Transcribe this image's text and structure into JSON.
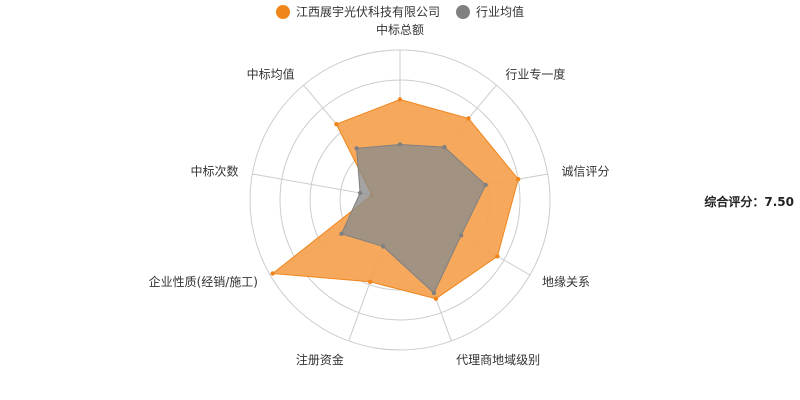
{
  "chart_data": {
    "type": "radar",
    "indicators": [
      "中标总额",
      "行业专一度",
      "诚信评分",
      "地缘关系",
      "代理商地域级别",
      "注册资金",
      "企业性质(经销/施工)",
      "中标次数",
      "中标均值"
    ],
    "max": 10,
    "series": [
      {
        "name": "江西展宇光伏科技有限公司",
        "values": [
          6.7,
          7.1,
          8.0,
          7.5,
          7.0,
          5.8,
          9.8,
          1.9,
          6.6
        ],
        "color": "#f0851a",
        "fill": "#f5a24f"
      },
      {
        "name": "行业均值",
        "values": [
          3.7,
          4.6,
          5.8,
          4.7,
          6.6,
          3.3,
          4.5,
          2.7,
          4.5
        ],
        "color": "#808080",
        "fill": "#8c8c8c"
      }
    ],
    "grid": {
      "rings": 5,
      "ring_color": "#cccccc",
      "spoke_color": "#cccccc"
    },
    "legend_position": "top-center"
  },
  "score": {
    "text": "综合评分：7.50"
  }
}
